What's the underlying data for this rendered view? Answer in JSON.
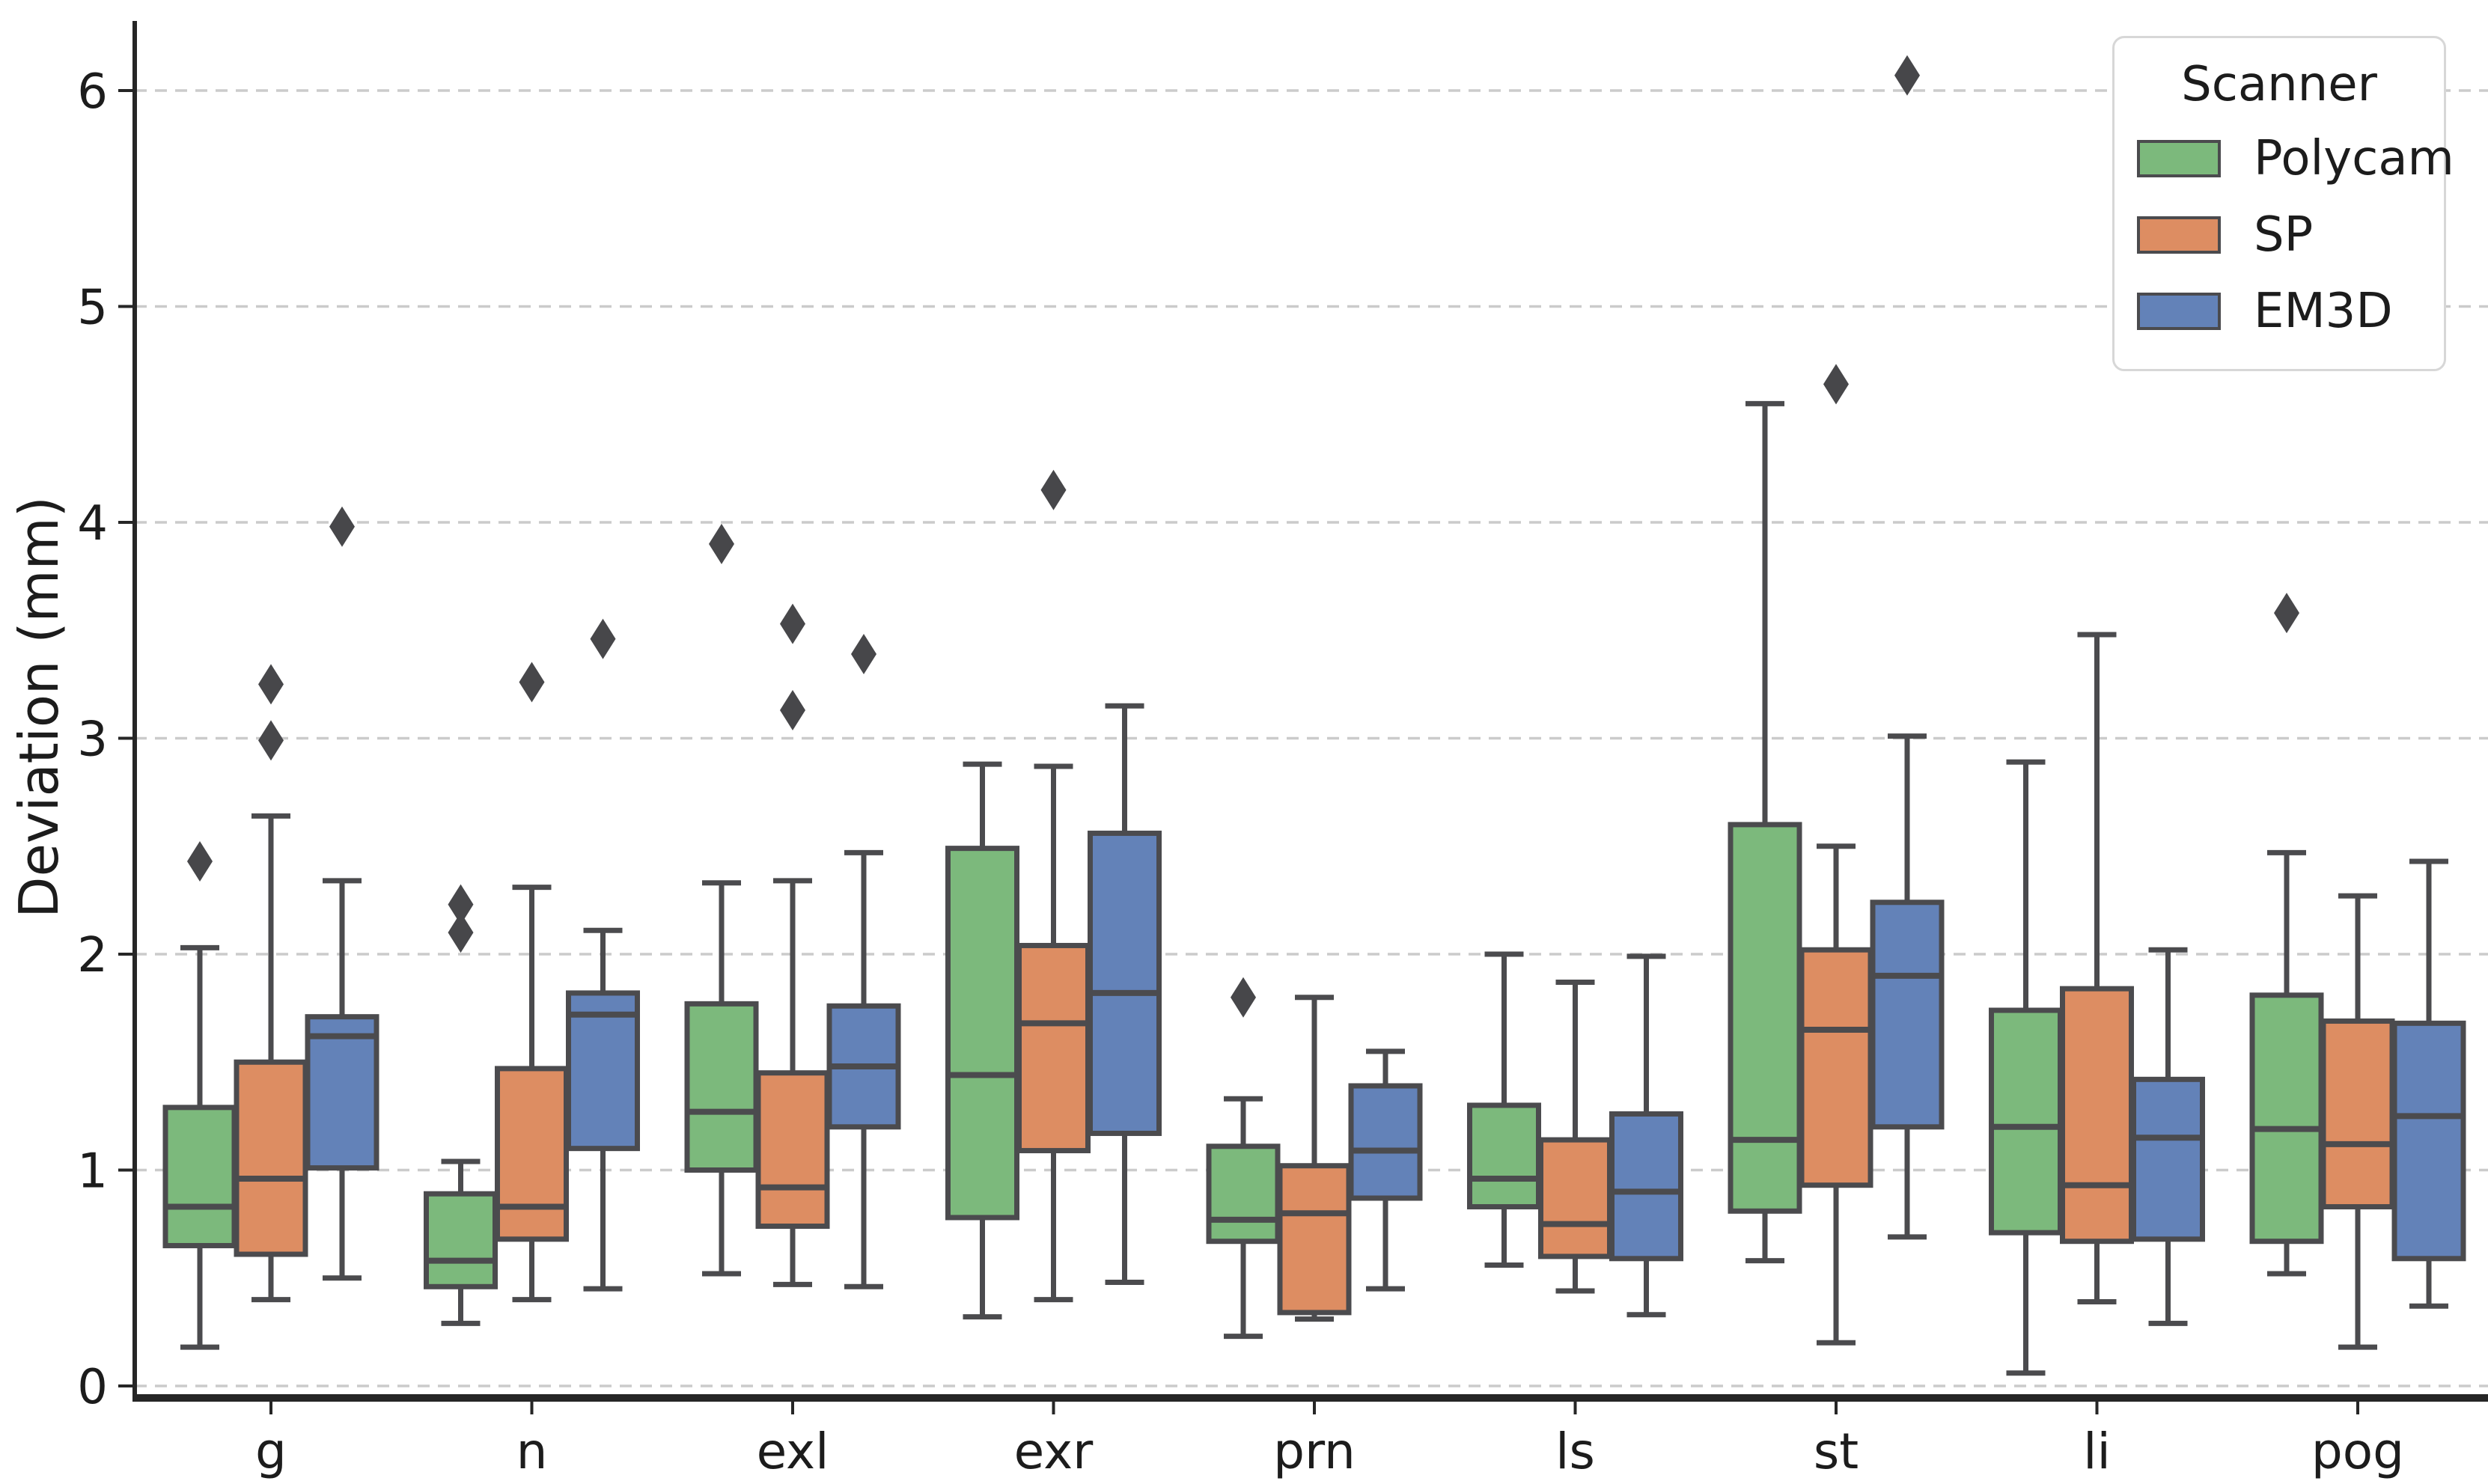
{
  "figure": {
    "ylabel": "Deviation (mm)"
  },
  "legend": {
    "title": "Scanner",
    "items": [
      {
        "label": "Polycam",
        "color": "#7cb97c"
      },
      {
        "label": "SP",
        "color": "#dd8d62"
      },
      {
        "label": "EM3D",
        "color": "#6382b8"
      }
    ]
  },
  "chart_data": {
    "type": "boxplot",
    "title": "",
    "xlabel": "",
    "ylabel": "Deviation (mm)",
    "categories": [
      "g",
      "n",
      "exl",
      "exr",
      "prn",
      "ls",
      "st",
      "li",
      "pog"
    ],
    "y_ticks": [
      0,
      1,
      2,
      3,
      4,
      5,
      6
    ],
    "ylim": [
      -0.06,
      6.35
    ],
    "grid": "horizontal-dashed",
    "legend_title": "Scanner",
    "legend_position": "upper-right",
    "series": [
      {
        "name": "Polycam",
        "color": "#7cb97c",
        "boxes": [
          {
            "category": "g",
            "whislo": 0.18,
            "q1": 0.65,
            "med": 0.83,
            "q3": 1.29,
            "whishi": 2.03,
            "outliers": [
              2.43
            ]
          },
          {
            "category": "n",
            "whislo": 0.29,
            "q1": 0.46,
            "med": 0.58,
            "q3": 0.89,
            "whishi": 1.04,
            "outliers": [
              2.1,
              2.23
            ]
          },
          {
            "category": "exl",
            "whislo": 0.52,
            "q1": 1.0,
            "med": 1.27,
            "q3": 1.77,
            "whishi": 2.33,
            "outliers": [
              3.9
            ]
          },
          {
            "category": "exr",
            "whislo": 0.32,
            "q1": 0.78,
            "med": 1.44,
            "q3": 2.49,
            "whishi": 2.88,
            "outliers": []
          },
          {
            "category": "prn",
            "whislo": 0.23,
            "q1": 0.67,
            "med": 0.77,
            "q3": 1.11,
            "whishi": 1.33,
            "outliers": [
              1.8
            ]
          },
          {
            "category": "ls",
            "whislo": 0.56,
            "q1": 0.83,
            "med": 0.96,
            "q3": 1.3,
            "whishi": 2.0,
            "outliers": []
          },
          {
            "category": "st",
            "whislo": 0.58,
            "q1": 0.81,
            "med": 1.14,
            "q3": 2.6,
            "whishi": 4.55,
            "outliers": []
          },
          {
            "category": "li",
            "whislo": 0.06,
            "q1": 0.71,
            "med": 1.2,
            "q3": 1.74,
            "whishi": 2.89,
            "outliers": []
          },
          {
            "category": "pog",
            "whislo": 0.52,
            "q1": 0.67,
            "med": 1.19,
            "q3": 1.81,
            "whishi": 2.47,
            "outliers": [
              3.58
            ]
          }
        ]
      },
      {
        "name": "SP",
        "color": "#dd8d62",
        "boxes": [
          {
            "category": "g",
            "whislo": 0.4,
            "q1": 0.61,
            "med": 0.96,
            "q3": 1.5,
            "whishi": 2.64,
            "outliers": [
              2.99,
              3.25
            ]
          },
          {
            "category": "n",
            "whislo": 0.4,
            "q1": 0.68,
            "med": 0.83,
            "q3": 1.47,
            "whishi": 2.31,
            "outliers": [
              3.26
            ]
          },
          {
            "category": "exl",
            "whislo": 0.47,
            "q1": 0.74,
            "med": 0.92,
            "q3": 1.45,
            "whishi": 2.34,
            "outliers": [
              3.13,
              3.53
            ]
          },
          {
            "category": "exr",
            "whislo": 0.4,
            "q1": 1.09,
            "med": 1.68,
            "q3": 2.04,
            "whishi": 2.87,
            "outliers": [
              4.15
            ]
          },
          {
            "category": "prn",
            "whislo": 0.31,
            "q1": 0.34,
            "med": 0.8,
            "q3": 1.02,
            "whishi": 1.8,
            "outliers": []
          },
          {
            "category": "ls",
            "whislo": 0.44,
            "q1": 0.6,
            "med": 0.75,
            "q3": 1.14,
            "whishi": 1.87,
            "outliers": []
          },
          {
            "category": "st",
            "whislo": 0.2,
            "q1": 0.93,
            "med": 1.65,
            "q3": 2.02,
            "whishi": 2.5,
            "outliers": [
              4.64
            ]
          },
          {
            "category": "li",
            "whislo": 0.39,
            "q1": 0.67,
            "med": 0.93,
            "q3": 1.84,
            "whishi": 3.48,
            "outliers": []
          },
          {
            "category": "pog",
            "whislo": 0.18,
            "q1": 0.83,
            "med": 1.12,
            "q3": 1.69,
            "whishi": 2.27,
            "outliers": []
          }
        ]
      },
      {
        "name": "EM3D",
        "color": "#6382b8",
        "boxes": [
          {
            "category": "g",
            "whislo": 0.5,
            "q1": 1.01,
            "med": 1.62,
            "q3": 1.71,
            "whishi": 2.34,
            "outliers": [
              3.98
            ]
          },
          {
            "category": "n",
            "whislo": 0.45,
            "q1": 1.1,
            "med": 1.72,
            "q3": 1.82,
            "whishi": 2.11,
            "outliers": [
              3.46
            ]
          },
          {
            "category": "exl",
            "whislo": 0.46,
            "q1": 1.2,
            "med": 1.48,
            "q3": 1.76,
            "whishi": 2.47,
            "outliers": [
              3.39
            ]
          },
          {
            "category": "exr",
            "whislo": 0.48,
            "q1": 1.17,
            "med": 1.82,
            "q3": 2.56,
            "whishi": 3.15,
            "outliers": []
          },
          {
            "category": "prn",
            "whislo": 0.45,
            "q1": 0.87,
            "med": 1.09,
            "q3": 1.39,
            "whishi": 1.55,
            "outliers": []
          },
          {
            "category": "ls",
            "whislo": 0.33,
            "q1": 0.59,
            "med": 0.9,
            "q3": 1.26,
            "whishi": 1.99,
            "outliers": []
          },
          {
            "category": "st",
            "whislo": 0.69,
            "q1": 1.2,
            "med": 1.9,
            "q3": 2.24,
            "whishi": 3.01,
            "outliers": [
              6.07
            ]
          },
          {
            "category": "li",
            "whislo": 0.29,
            "q1": 0.68,
            "med": 1.15,
            "q3": 1.42,
            "whishi": 2.02,
            "outliers": []
          },
          {
            "category": "pog",
            "whislo": 0.37,
            "q1": 0.59,
            "med": 1.25,
            "q3": 1.68,
            "whishi": 2.43,
            "outliers": []
          }
        ]
      }
    ],
    "style": {
      "edge_color": "#4b4b4e",
      "outlier_color": "#47474a",
      "grid_color": "#cbcbcb",
      "spine_color": "#262626",
      "text_color": "#1c1c1c",
      "background": "#ffffff"
    }
  }
}
